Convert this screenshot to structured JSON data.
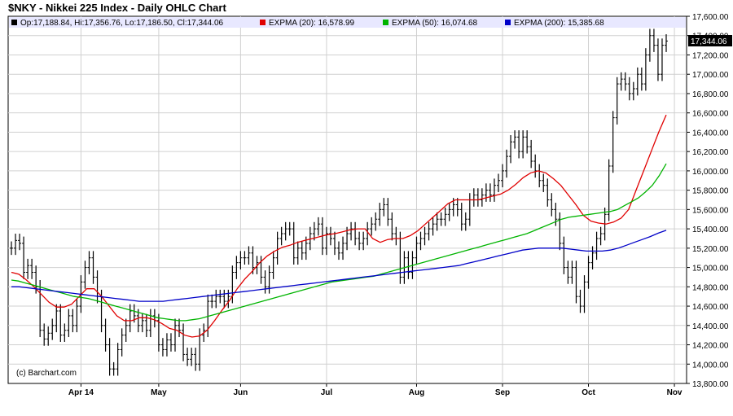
{
  "header": {
    "title": "$NKY - Nikkei 225 Index - Daily OHLC Chart"
  },
  "legend": {
    "ohlc": "Op:17,188.84, Hi:17,356.76, Lo:17,186.50, Cl:17,344.06",
    "ema20": "EXPMA (20): 16,578.99",
    "ema50": "EXPMA (50): 16,074.68",
    "ema200": "EXPMA (200): 15,385.68"
  },
  "last_price_label": "17,344.06",
  "credit": "(c) Barchart.com",
  "colors": {
    "price": "#000000",
    "ema20": "#e00000",
    "ema50": "#00b400",
    "ema200": "#0000c8",
    "grid": "#d0d0d0",
    "legend_bg": "#e8e8ff"
  },
  "chart_data": {
    "type": "line",
    "ylim": [
      13800,
      17600
    ],
    "y_ticks": [
      "17,600.00",
      "17,400.00",
      "17,200.00",
      "17,000.00",
      "16,800.00",
      "16,600.00",
      "16,400.00",
      "16,200.00",
      "16,000.00",
      "15,800.00",
      "15,600.00",
      "15,400.00",
      "15,200.00",
      "15,000.00",
      "14,800.00",
      "14,600.00",
      "14,400.00",
      "14,200.00",
      "14,000.00",
      "13,800.00"
    ],
    "y_tick_values": [
      17600,
      17400,
      17200,
      17000,
      16800,
      16600,
      16400,
      16200,
      16000,
      15800,
      15600,
      15400,
      15200,
      15000,
      14800,
      14600,
      14400,
      14200,
      14000,
      13800
    ],
    "x_ticks": [
      {
        "label": "Apr 14",
        "index": 17
      },
      {
        "label": "May",
        "index": 36
      },
      {
        "label": "Jun",
        "index": 56
      },
      {
        "label": "Jul",
        "index": 77
      },
      {
        "label": "Aug",
        "index": 99
      },
      {
        "label": "Sep",
        "index": 120
      },
      {
        "label": "Oct",
        "index": 141
      },
      {
        "label": "Nov",
        "index": 162
      }
    ],
    "ohlc_close": [
      15200,
      15280,
      15250,
      14950,
      15020,
      14950,
      14800,
      14350,
      14260,
      14320,
      14400,
      14550,
      14300,
      14350,
      14500,
      14400,
      14600,
      14850,
      15000,
      15100,
      14900,
      14700,
      14400,
      14200,
      13950,
      13950,
      14150,
      14300,
      14400,
      14550,
      14500,
      14400,
      14450,
      14350,
      14500,
      14450,
      14200,
      14150,
      14250,
      14200,
      14400,
      14350,
      14100,
      14050,
      14100,
      14000,
      14300,
      14350,
      14650,
      14650,
      14700,
      14700,
      14650,
      14700,
      14950,
      15050,
      15100,
      15100,
      15150,
      15000,
      15050,
      14900,
      14800,
      14950,
      15100,
      15300,
      15350,
      15400,
      15400,
      15100,
      15200,
      15150,
      15250,
      15350,
      15400,
      15450,
      15200,
      15350,
      15300,
      15200,
      15150,
      15250,
      15350,
      15400,
      15300,
      15250,
      15300,
      15400,
      15450,
      15500,
      15600,
      15650,
      15500,
      15350,
      15300,
      14900,
      15100,
      14950,
      15100,
      15250,
      15300,
      15350,
      15400,
      15450,
      15500,
      15500,
      15550,
      15600,
      15650,
      15600,
      15450,
      15500,
      15700,
      15750,
      15700,
      15750,
      15800,
      15750,
      15850,
      15900,
      16000,
      16150,
      16300,
      16350,
      16200,
      16350,
      16250,
      16100,
      16000,
      15900,
      15850,
      15700,
      15600,
      15500,
      15250,
      15000,
      14900,
      15000,
      14700,
      14600,
      14850,
      15050,
      15150,
      15300,
      15350,
      15550,
      16050,
      16550,
      16900,
      16950,
      16900,
      16800,
      16850,
      17000,
      16900,
      17200,
      17400,
      17300,
      17000,
      17300,
      17344
    ],
    "series": [
      {
        "name": "EXPMA (20)",
        "values": [
          14950,
          14930,
          14870,
          14800,
          14720,
          14640,
          14590,
          14590,
          14620,
          14700,
          14780,
          14780,
          14700,
          14600,
          14500,
          14450,
          14450,
          14480,
          14480,
          14460,
          14420,
          14370,
          14350,
          14300,
          14280,
          14290,
          14350,
          14450,
          14560,
          14660,
          14780,
          14880,
          14960,
          15050,
          15120,
          15170,
          15210,
          15230,
          15260,
          15280,
          15300,
          15320,
          15340,
          15350,
          15370,
          15390,
          15400,
          15400,
          15300,
          15260,
          15290,
          15300,
          15300,
          15330,
          15380,
          15450,
          15520,
          15590,
          15660,
          15700,
          15700,
          15700,
          15700,
          15720,
          15740,
          15760,
          15800,
          15860,
          15930,
          15980,
          16000,
          15980,
          15920,
          15850,
          15750,
          15650,
          15540,
          15480,
          15460,
          15450,
          15470,
          15510,
          15600,
          15800,
          16000,
          16200,
          16400,
          16580
        ]
      },
      {
        "name": "EXPMA (50)",
        "values": [
          14870,
          14860,
          14840,
          14820,
          14800,
          14780,
          14760,
          14740,
          14720,
          14700,
          14690,
          14680,
          14660,
          14640,
          14620,
          14600,
          14580,
          14560,
          14540,
          14520,
          14500,
          14480,
          14470,
          14460,
          14450,
          14450,
          14460,
          14470,
          14490,
          14510,
          14530,
          14550,
          14570,
          14590,
          14610,
          14630,
          14650,
          14670,
          14690,
          14710,
          14730,
          14750,
          14770,
          14790,
          14810,
          14830,
          14850,
          14860,
          14870,
          14880,
          14890,
          14900,
          14910,
          14930,
          14950,
          14970,
          14990,
          15010,
          15030,
          15050,
          15070,
          15090,
          15110,
          15130,
          15150,
          15170,
          15190,
          15210,
          15230,
          15250,
          15270,
          15290,
          15310,
          15330,
          15350,
          15380,
          15410,
          15440,
          15470,
          15500,
          15520,
          15530,
          15540,
          15550,
          15560,
          15570,
          15580,
          15600,
          15640,
          15680,
          15720,
          15780,
          15850,
          15950,
          16074
        ]
      },
      {
        "name": "EXPMA (200)",
        "values": [
          14800,
          14800,
          14790,
          14780,
          14770,
          14760,
          14750,
          14740,
          14730,
          14720,
          14710,
          14700,
          14690,
          14680,
          14670,
          14660,
          14650,
          14650,
          14650,
          14650,
          14660,
          14670,
          14680,
          14690,
          14700,
          14710,
          14720,
          14730,
          14740,
          14750,
          14760,
          14770,
          14780,
          14790,
          14800,
          14810,
          14820,
          14830,
          14840,
          14850,
          14860,
          14870,
          14880,
          14890,
          14900,
          14910,
          14920,
          14930,
          14940,
          14950,
          14960,
          14970,
          14980,
          14990,
          15000,
          15010,
          15020,
          15040,
          15060,
          15080,
          15100,
          15120,
          15140,
          15160,
          15180,
          15190,
          15200,
          15200,
          15200,
          15200,
          15190,
          15180,
          15170,
          15170,
          15170,
          15180,
          15200,
          15230,
          15260,
          15290,
          15320,
          15355,
          15385
        ]
      }
    ]
  }
}
